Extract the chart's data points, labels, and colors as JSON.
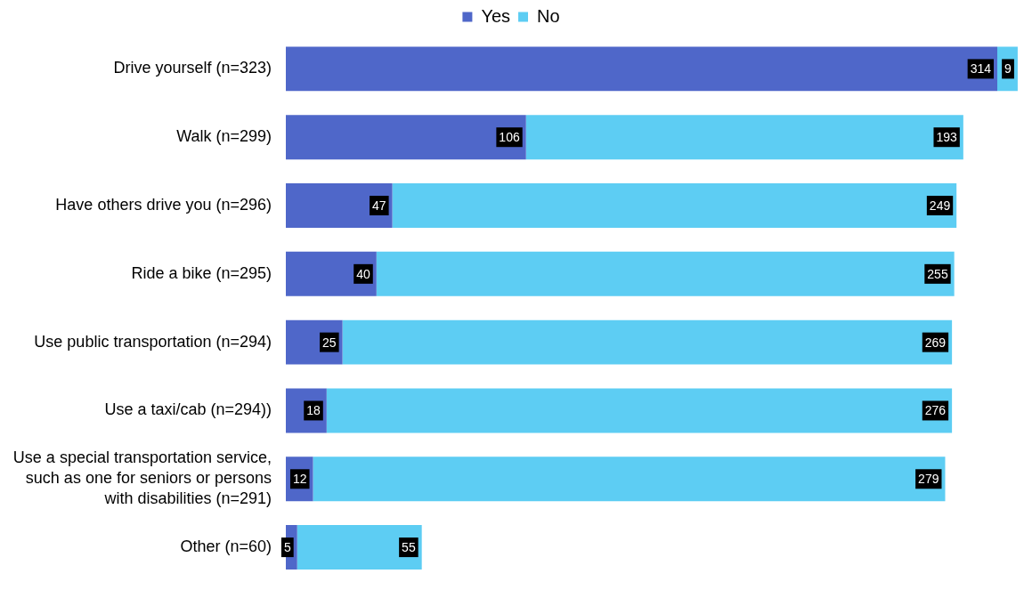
{
  "chart_data": {
    "type": "bar",
    "orientation": "horizontal",
    "stacked": true,
    "categories": [
      "Drive yourself (n=323)",
      "Walk (n=299)",
      "Have others drive you (n=296)",
      "Ride a bike (n=295)",
      "Use public transportation (n=294)",
      "Use a taxi/cab (n=294))",
      "Use a special transportation service, such as one for seniors or persons with disabilities (n=291)",
      "Other (n=60)"
    ],
    "series": [
      {
        "name": "Yes",
        "color": "#4f67c9",
        "values": [
          314,
          106,
          47,
          40,
          25,
          18,
          12,
          5
        ]
      },
      {
        "name": "No",
        "color": "#5dcdf3",
        "values": [
          9,
          193,
          249,
          255,
          269,
          276,
          279,
          55
        ]
      }
    ],
    "xlim": [
      0,
      325
    ],
    "data_labels": true,
    "legend": "top",
    "grid": false,
    "tick_labels": "y"
  }
}
